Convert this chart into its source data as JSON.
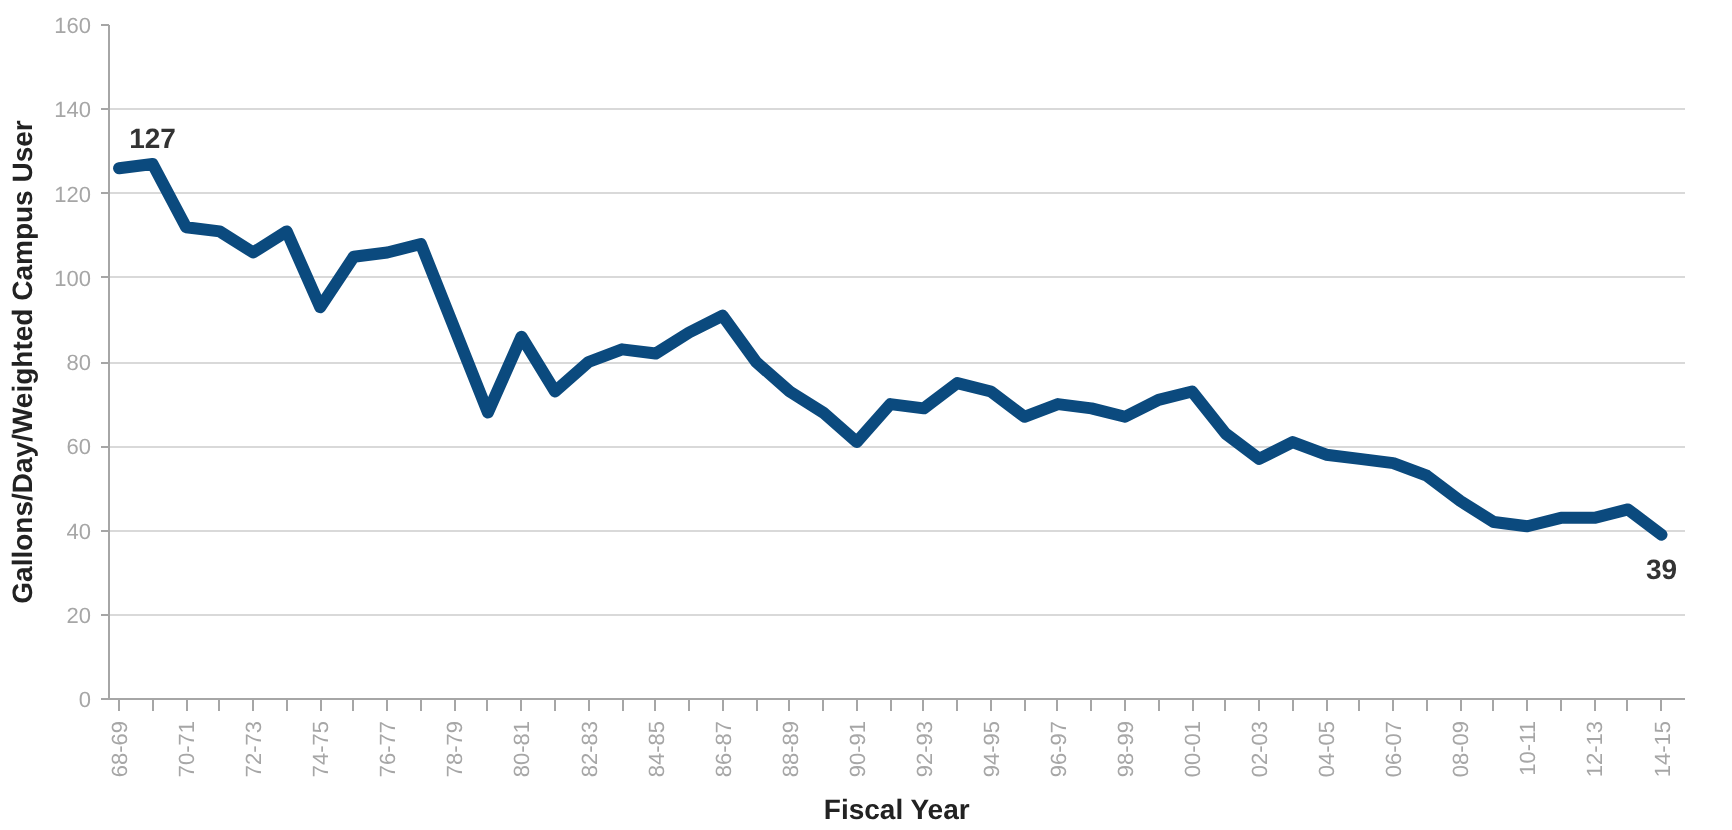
{
  "chart_data": {
    "type": "line",
    "xlabel": "Fiscal Year",
    "ylabel": "Gallons/Day/Weighted Campus User",
    "categories": [
      "68-69",
      null,
      "70-71",
      null,
      "72-73",
      null,
      "74-75",
      null,
      "76-77",
      null,
      "78-79",
      null,
      "80-81",
      null,
      "82-83",
      null,
      "84-85",
      null,
      "86-87",
      null,
      "88-89",
      null,
      "90-91",
      null,
      "92-93",
      null,
      "94-95",
      null,
      "96-97",
      null,
      "98-99",
      null,
      "00-01",
      null,
      "02-03",
      null,
      "04-05",
      null,
      "06-07",
      null,
      "08-09",
      null,
      "10-11",
      null,
      "12-13",
      null,
      "14-15"
    ],
    "series": [
      {
        "color": "#0b4a7e",
        "values": [
          126,
          127,
          112,
          111,
          106,
          111,
          93,
          105,
          106,
          108,
          88,
          68,
          86,
          73,
          80,
          83,
          82,
          87,
          91,
          80,
          73,
          68,
          61,
          70,
          69,
          75,
          73,
          67,
          70,
          69,
          67,
          71,
          73,
          63,
          57,
          61,
          58,
          57,
          56,
          53,
          47,
          42,
          41,
          43,
          43,
          45,
          39
        ],
        "value_labels": [
          null,
          "127",
          null,
          null,
          null,
          null,
          null,
          null,
          null,
          null,
          null,
          null,
          null,
          null,
          null,
          null,
          null,
          null,
          null,
          null,
          null,
          null,
          null,
          null,
          null,
          null,
          null,
          null,
          null,
          null,
          null,
          null,
          null,
          null,
          null,
          null,
          null,
          null,
          null,
          null,
          null,
          null,
          null,
          null,
          null,
          null,
          "39"
        ]
      }
    ],
    "ylim": [
      0,
      160
    ],
    "yticks": [
      0,
      20,
      40,
      60,
      80,
      100,
      120,
      140,
      160
    ],
    "grid": "y",
    "marker": "none",
    "line_style": "solid"
  }
}
